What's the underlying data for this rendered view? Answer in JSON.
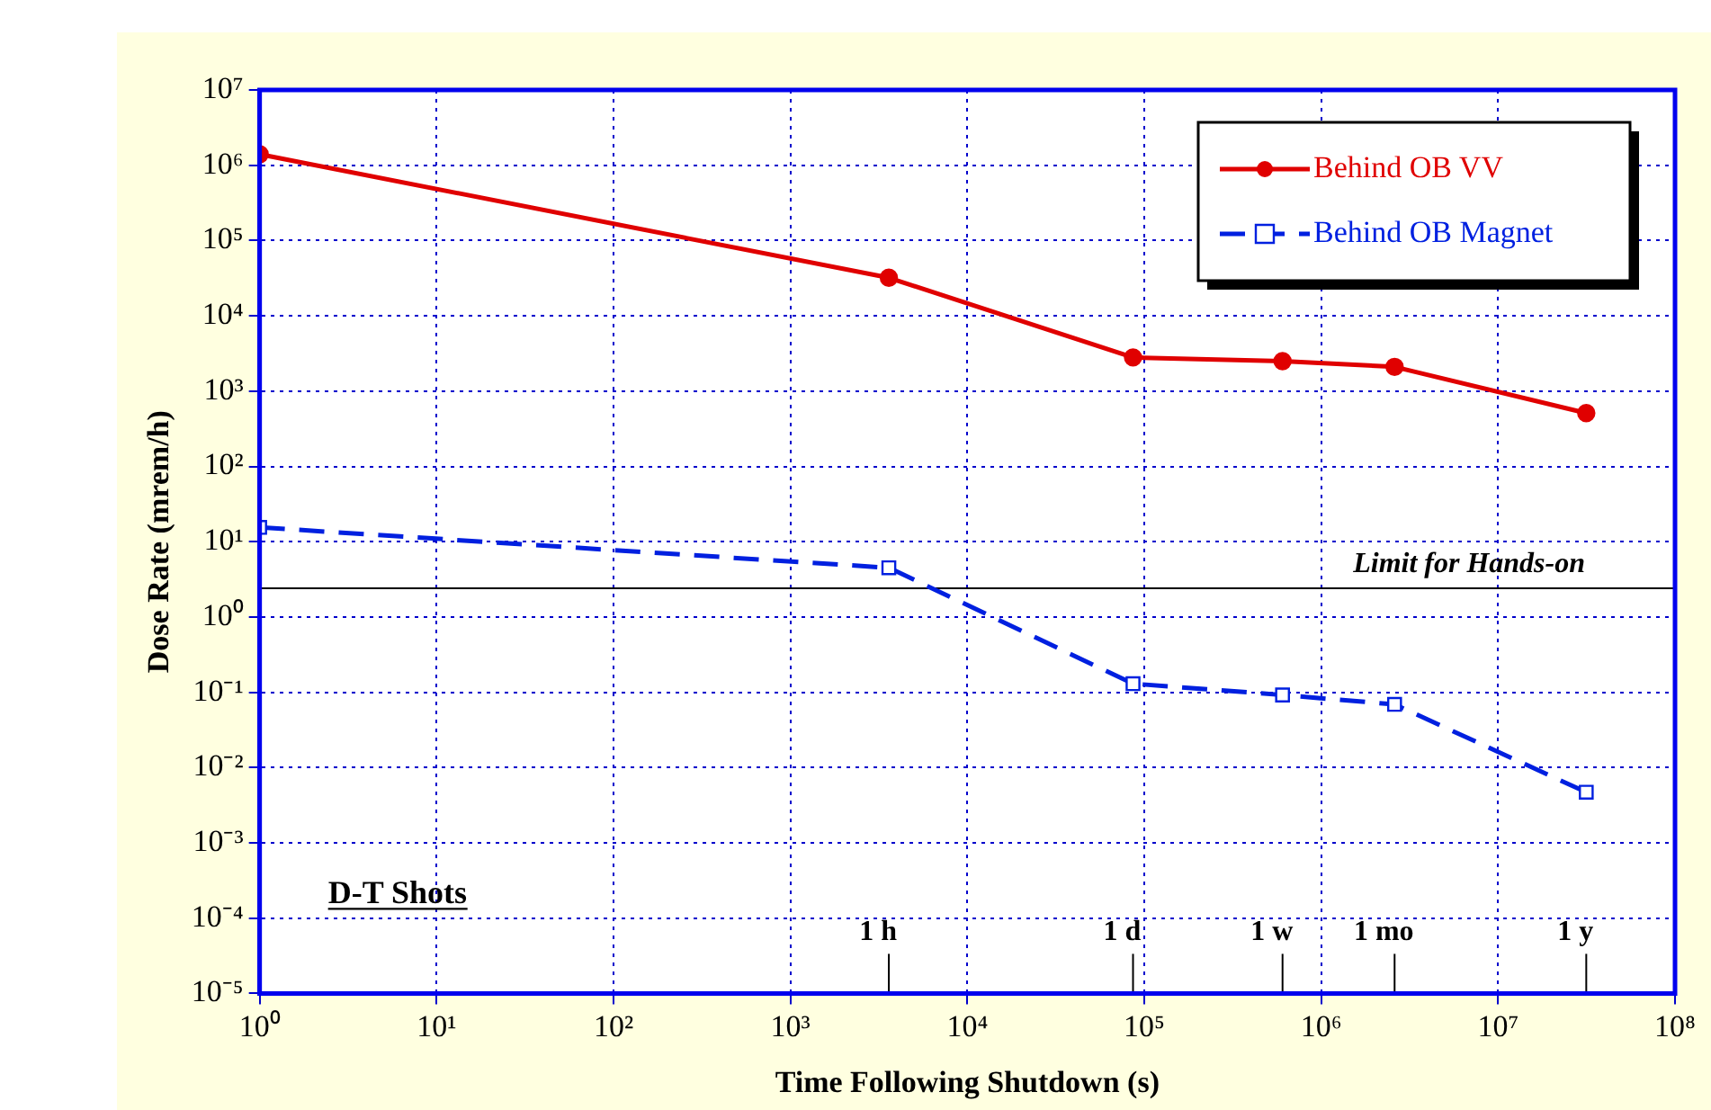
{
  "chart_data": {
    "type": "line",
    "xlabel": "Time Following Shutdown (s)",
    "ylabel": "Dose Rate (mrem/h)",
    "log": "xy",
    "grid": true,
    "legend": "top right",
    "xlim": [
      1,
      100000000
    ],
    "xticks": [
      {
        "value": 1,
        "label": "10⁰"
      },
      {
        "value": 10,
        "label": "10¹"
      },
      {
        "value": 100,
        "label": "10²"
      },
      {
        "value": 1000,
        "label": "10³"
      },
      {
        "value": 10000,
        "label": "10⁴"
      },
      {
        "value": 100000,
        "label": "10⁵"
      },
      {
        "value": 1000000,
        "label": "10⁶"
      },
      {
        "value": 10000000,
        "label": "10⁷"
      },
      {
        "value": 100000000,
        "label": "10⁸"
      }
    ],
    "ylim": [
      1e-05,
      10000000
    ],
    "yticks": [
      {
        "value": 1e-05,
        "label": "10⁻⁵"
      },
      {
        "value": 0.0001,
        "label": "10⁻⁴"
      },
      {
        "value": 0.001,
        "label": "10⁻³"
      },
      {
        "value": 0.01,
        "label": "10⁻²"
      },
      {
        "value": 0.1,
        "label": "10⁻¹"
      },
      {
        "value": 1,
        "label": "10⁰"
      },
      {
        "value": 10,
        "label": "10¹"
      },
      {
        "value": 100,
        "label": "10²"
      },
      {
        "value": 1000,
        "label": "10³"
      },
      {
        "value": 10000,
        "label": "10⁴"
      },
      {
        "value": 100000,
        "label": "10⁵"
      },
      {
        "value": 1000000,
        "label": "10⁶"
      },
      {
        "value": 10000000,
        "label": "10⁷"
      }
    ],
    "x": [
      1,
      3600,
      86400,
      604800,
      2600000,
      31500000
    ],
    "series": [
      {
        "name": "Behind OB VV",
        "color": "#e00000",
        "marker": "circle",
        "line_style": "solid",
        "values": [
          1400000,
          32000,
          2800,
          2500,
          2100,
          510
        ]
      },
      {
        "name": "Behind OB Magnet",
        "color": "#0020e0",
        "marker": "square",
        "line_style": "dashed",
        "values": [
          15.5,
          4.5,
          0.13,
          0.092,
          0.069,
          0.0047
        ]
      }
    ],
    "ref_lines": [
      {
        "axis": "y",
        "value": 2.4,
        "label": "Limit for Hands-on",
        "color": "#000000"
      },
      {
        "axis": "x",
        "value": 3600,
        "label": "1 h",
        "color": "#000000"
      },
      {
        "axis": "x",
        "value": 86400,
        "label": "1 d",
        "color": "#000000"
      },
      {
        "axis": "x",
        "value": 604800,
        "label": "1 w",
        "color": "#000000"
      },
      {
        "axis": "x",
        "value": 2600000,
        "label": "1 mo",
        "color": "#000000"
      },
      {
        "axis": "x",
        "value": 31500000,
        "label": "1 y",
        "color": "#000000"
      }
    ],
    "annotations": [
      "D-T Shots"
    ]
  }
}
